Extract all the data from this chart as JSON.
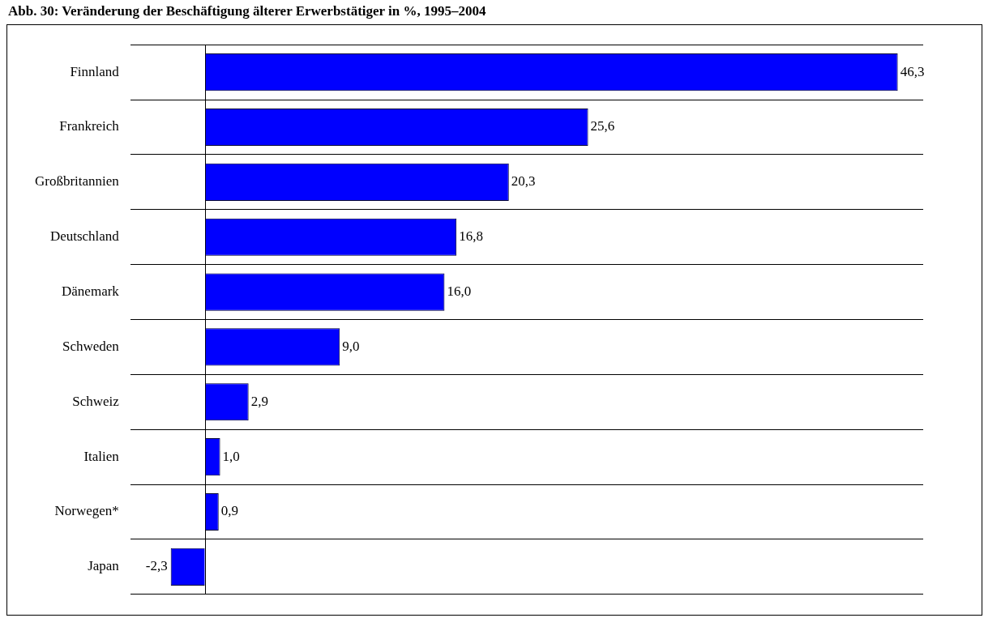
{
  "chart_data": {
    "type": "bar",
    "orientation": "horizontal",
    "title": "Abb. 30: Veränderung der Beschäftigung älterer Erwerbstätiger in %, 1995–2004",
    "categories": [
      "Finnland",
      "Frankreich",
      "Großbritannien",
      "Deutschland",
      "Dänemark",
      "Schweden",
      "Schweiz",
      "Italien",
      "Norwegen*",
      "Japan"
    ],
    "values": [
      46.3,
      25.6,
      20.3,
      16.8,
      16.0,
      9.0,
      2.9,
      1.0,
      0.9,
      -2.3
    ],
    "value_labels": [
      "46,3",
      "25,6",
      "20,3",
      "16,8",
      "16,0",
      "9,0",
      "2,9",
      "1,0",
      "0,9",
      "-2,3"
    ],
    "color": "#0000ff",
    "xlim": [
      -5,
      48
    ],
    "grid": "y",
    "legend": false,
    "tick_labels": "y"
  }
}
